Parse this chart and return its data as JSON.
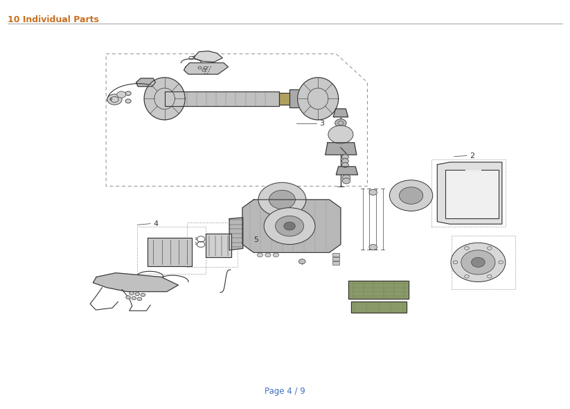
{
  "title": "10 Individual Parts",
  "footer": "Page 4 / 9",
  "title_color": "#c87020",
  "title_fontsize": 9,
  "footer_fontsize": 8.5,
  "footer_color": "#4070c0",
  "bg_color": "#ffffff",
  "part_color": "#333333",
  "part_fill": "#cccccc",
  "lw_main": 0.8
}
